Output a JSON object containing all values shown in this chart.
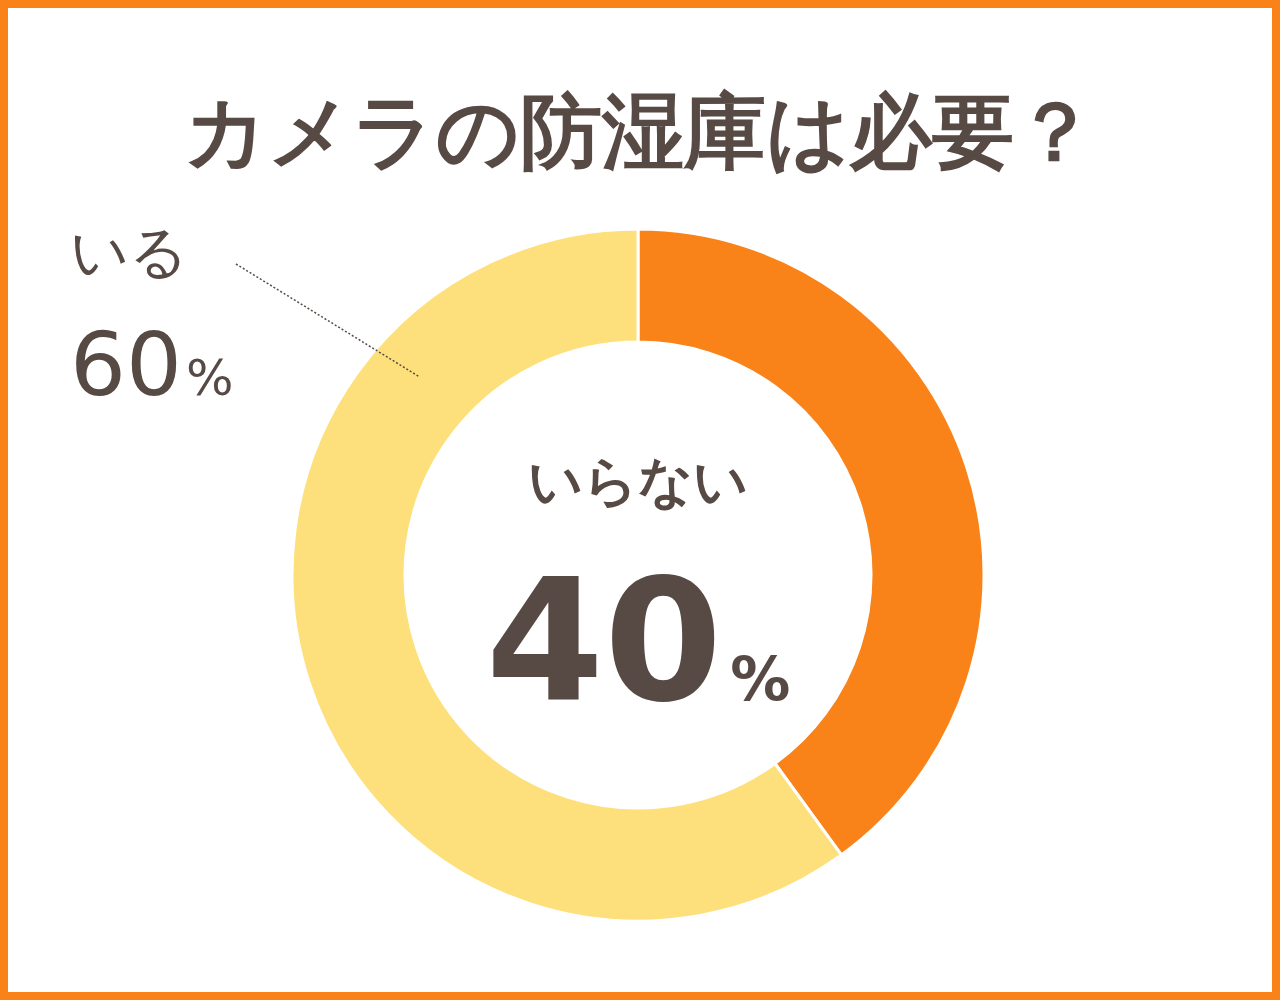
{
  "chart_data": {
    "type": "donut",
    "title": "カメラの防湿庫は必要？",
    "categories": [
      "いらない",
      "いる"
    ],
    "values": [
      40,
      60
    ],
    "colors": [
      "#f98318",
      "#fde07b"
    ],
    "value_labels": [
      "40%",
      "60%"
    ]
  }
}
